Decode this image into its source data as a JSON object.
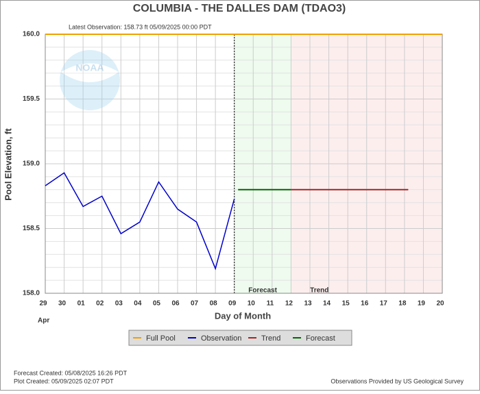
{
  "chart_data": {
    "type": "line",
    "title": "COLUMBIA - THE DALLES DAM  (TDAO3)",
    "subtitle": "Latest Observation:  158.73 ft 05/09/2025 00:00 PDT",
    "ylabel": "Pool Elevation, ft",
    "xlabel": "Day of Month",
    "month_label": "Apr",
    "xlim": [
      0,
      21
    ],
    "xticks": [
      {
        "value": 0,
        "label": "29"
      },
      {
        "value": 1,
        "label": "30"
      },
      {
        "value": 2,
        "label": "01"
      },
      {
        "value": 3,
        "label": "02"
      },
      {
        "value": 4,
        "label": "03"
      },
      {
        "value": 5,
        "label": "04"
      },
      {
        "value": 6,
        "label": "05"
      },
      {
        "value": 7,
        "label": "06"
      },
      {
        "value": 8,
        "label": "07"
      },
      {
        "value": 9,
        "label": "08"
      },
      {
        "value": 10,
        "label": "09"
      },
      {
        "value": 11,
        "label": "10"
      },
      {
        "value": 12,
        "label": "11"
      },
      {
        "value": 13,
        "label": "12"
      },
      {
        "value": 14,
        "label": "13"
      },
      {
        "value": 15,
        "label": "14"
      },
      {
        "value": 16,
        "label": "15"
      },
      {
        "value": 17,
        "label": "16"
      },
      {
        "value": 18,
        "label": "17"
      },
      {
        "value": 19,
        "label": "18"
      },
      {
        "value": 20,
        "label": "19"
      },
      {
        "value": 21,
        "label": "20"
      }
    ],
    "ylim": [
      158.0,
      160.0
    ],
    "yticks": [
      {
        "value": 158,
        "label": "158.0"
      },
      158.5,
      {
        "value": 159,
        "label": "159.0"
      },
      159.5,
      {
        "value": 160,
        "label": "160.0"
      }
    ],
    "yminorticks": [
      158.1,
      158.2,
      158.3,
      158.4,
      158.6,
      158.7,
      158.8,
      158.9,
      159.1,
      159.2,
      159.3,
      159.4,
      159.6,
      159.7,
      159.8,
      159.9
    ],
    "grid": true,
    "regions": [
      {
        "name": "Forecast",
        "x": [
          10,
          13
        ],
        "color": "#eefbee"
      },
      {
        "name": "Trend",
        "x": [
          13,
          21
        ],
        "color": "#fdeeee"
      }
    ],
    "full_pool": {
      "name": "Full Pool",
      "color": "#f0a000",
      "value": 160.0
    },
    "series": [
      {
        "name": "Observation",
        "color": "#0000cc",
        "x": [
          0,
          1,
          2,
          3,
          4,
          5,
          6,
          7,
          8,
          9,
          10
        ],
        "values": [
          158.83,
          158.93,
          158.67,
          158.75,
          158.46,
          158.55,
          158.86,
          158.65,
          158.55,
          158.19,
          158.73
        ]
      },
      {
        "name": "Trend",
        "color": "#aa2222",
        "x": [
          13,
          19.2
        ],
        "values": [
          158.8,
          158.8
        ]
      },
      {
        "name": "Forecast",
        "color": "#006600",
        "x": [
          10.2,
          13
        ],
        "values": [
          158.8,
          158.8
        ]
      }
    ],
    "footer": {
      "forecast_created": "Forecast Created: 05/08/2025 16:26 PDT",
      "plot_created": "Plot Created: 05/09/2025 02:07 PDT",
      "source": "Observations Provided by US Geological Survey"
    }
  }
}
